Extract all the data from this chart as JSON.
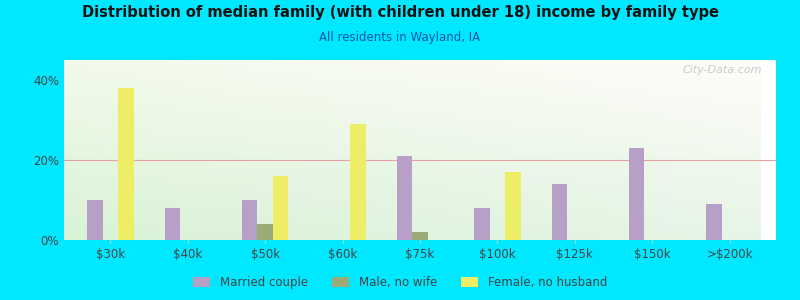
{
  "title": "Distribution of median family (with children under 18) income by family type",
  "subtitle": "All residents in Wayland, IA",
  "categories": [
    "$30k",
    "$40k",
    "$50k",
    "$60k",
    "$75k",
    "$100k",
    "$125k",
    "$150k",
    ">$200k"
  ],
  "series": {
    "Married couple": [
      10,
      8,
      10,
      0,
      21,
      8,
      14,
      23,
      9
    ],
    "Male, no wife": [
      0,
      0,
      4,
      0,
      2,
      0,
      0,
      0,
      0
    ],
    "Female, no husband": [
      38,
      0,
      16,
      29,
      0,
      17,
      0,
      0,
      0
    ]
  },
  "colors": {
    "Married couple": "#b89fc8",
    "Male, no wife": "#9aab78",
    "Female, no husband": "#eeee66"
  },
  "ylim": [
    0,
    45
  ],
  "yticks": [
    0,
    20,
    40
  ],
  "ytick_labels": [
    "0%",
    "20%",
    "40%"
  ],
  "grid_yticks": [
    20
  ],
  "bg_outer": "#00e8ff",
  "title_color": "#111111",
  "subtitle_color": "#0055aa",
  "axis_label_color": "#444444",
  "watermark": "City-Data.com"
}
